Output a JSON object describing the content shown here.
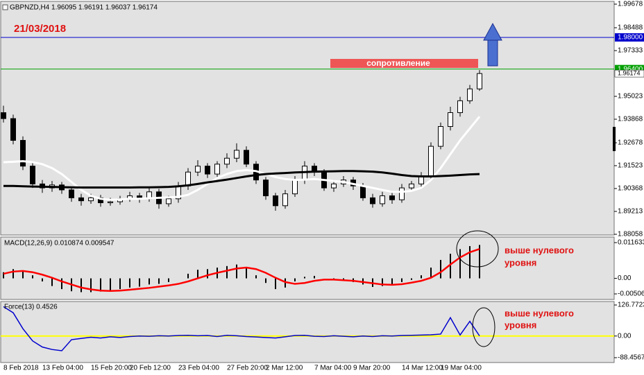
{
  "chart_data": [
    {
      "type": "candlestick",
      "title": "GBPNZD,H4  1.96095 1.96191 1.96037 1.96174",
      "categories": [
        "8 Feb 2018",
        null,
        null,
        null,
        "13 Feb 04:00",
        null,
        null,
        null,
        null,
        "15 Feb 20:00",
        null,
        null,
        null,
        "20 Feb 12:00",
        null,
        null,
        null,
        null,
        "23 Feb 04:00",
        null,
        null,
        null,
        null,
        "27 Feb 20:00",
        null,
        null,
        null,
        "2 Mar 12:00",
        null,
        null,
        null,
        null,
        "7 Mar 04:00",
        null,
        null,
        null,
        "9 Mar 20:00",
        null,
        null,
        null,
        null,
        "14 Mar 12:00",
        null,
        null,
        null,
        "19 Mar 04:00",
        null,
        null,
        null,
        null
      ],
      "open": [
        1.942,
        1.939,
        1.928,
        1.915,
        1.906,
        1.904,
        1.9055,
        1.903,
        1.899,
        1.8975,
        1.899,
        1.8965,
        1.897,
        1.8985,
        1.9,
        1.8985,
        1.902,
        1.896,
        1.8985,
        1.905,
        1.912,
        1.915,
        1.911,
        1.916,
        1.919,
        1.923,
        1.916,
        1.908,
        1.9,
        1.895,
        1.901,
        1.908,
        1.915,
        1.912,
        1.904,
        1.906,
        1.908,
        1.905,
        1.899,
        1.896,
        1.9,
        1.898,
        1.904,
        1.906,
        1.91,
        1.925,
        1.935,
        1.942,
        1.948,
        1.954
      ],
      "high": [
        1.9455,
        1.941,
        1.93,
        1.917,
        1.908,
        1.9075,
        1.907,
        1.9045,
        1.901,
        1.901,
        1.9005,
        1.899,
        1.9,
        1.902,
        1.9015,
        1.904,
        1.9035,
        1.9,
        1.907,
        1.914,
        1.918,
        1.9165,
        1.9175,
        1.9215,
        1.9265,
        1.925,
        1.9175,
        1.9095,
        1.9015,
        1.903,
        1.91,
        1.9175,
        1.9165,
        1.9135,
        1.908,
        1.91,
        1.9095,
        1.9065,
        1.901,
        1.902,
        1.9015,
        1.906,
        1.9075,
        1.912,
        1.927,
        1.937,
        1.945,
        1.95,
        1.956,
        1.9635
      ],
      "low": [
        1.937,
        1.926,
        1.913,
        1.904,
        1.9015,
        1.902,
        1.901,
        1.897,
        1.895,
        1.896,
        1.8945,
        1.895,
        1.8955,
        1.897,
        1.8965,
        1.897,
        1.8935,
        1.8945,
        1.8965,
        1.903,
        1.91,
        1.909,
        1.9095,
        1.914,
        1.917,
        1.9145,
        1.906,
        1.898,
        1.8925,
        1.8935,
        1.8995,
        1.906,
        1.91,
        1.9025,
        1.902,
        1.9045,
        1.903,
        1.8975,
        1.894,
        1.8945,
        1.896,
        1.8965,
        1.903,
        1.9045,
        1.9085,
        1.9235,
        1.933,
        1.94,
        1.9465,
        1.953
      ],
      "close": [
        1.939,
        1.928,
        1.915,
        1.906,
        1.904,
        1.9055,
        1.903,
        1.899,
        1.8975,
        1.899,
        1.8965,
        1.897,
        1.8985,
        1.9,
        1.8985,
        1.902,
        1.896,
        1.8985,
        1.905,
        1.912,
        1.915,
        1.911,
        1.916,
        1.919,
        1.923,
        1.916,
        1.908,
        1.9,
        1.895,
        1.901,
        1.908,
        1.915,
        1.912,
        1.904,
        1.906,
        1.908,
        1.905,
        1.899,
        1.896,
        1.9,
        1.898,
        1.904,
        1.906,
        1.91,
        1.925,
        1.935,
        1.942,
        1.948,
        1.954,
        1.96174
      ],
      "up_color": "#ffffff",
      "down_color": "#000000",
      "series": [
        {
          "color": "#ffffff",
          "values": [
            1.917,
            1.9172,
            1.9175,
            1.917,
            1.916,
            1.914,
            1.911,
            1.907,
            1.903,
            1.9,
            1.8985,
            1.898,
            1.8982,
            1.8985,
            1.8985,
            1.8988,
            1.899,
            1.8992,
            1.8995,
            1.9005,
            1.903,
            1.906,
            1.909,
            1.911,
            1.9125,
            1.913,
            1.9125,
            1.911,
            1.9095,
            1.9085,
            1.908,
            1.9082,
            1.9085,
            1.908,
            1.9075,
            1.907,
            1.906,
            1.905,
            1.904,
            1.903,
            1.902,
            1.902,
            1.9025,
            1.904,
            1.908,
            1.914,
            1.921,
            1.928,
            1.934,
            1.94
          ]
        },
        {
          "color": "#000000",
          "values": [
            1.905,
            1.905,
            1.9048,
            1.9047,
            1.9046,
            1.9045,
            1.9044,
            1.9043,
            1.9042,
            1.9042,
            1.9042,
            1.9042,
            1.9042,
            1.9042,
            1.9043,
            1.9043,
            1.9044,
            1.9045,
            1.9048,
            1.9053,
            1.906,
            1.9068,
            1.9075,
            1.9082,
            1.909,
            1.9098,
            1.9105,
            1.911,
            1.9113,
            1.9115,
            1.9118,
            1.912,
            1.9122,
            1.9123,
            1.9124,
            1.9125,
            1.9125,
            1.9124,
            1.9122,
            1.9118,
            1.9112,
            1.9105,
            1.91,
            1.9098,
            1.9098,
            1.91,
            1.9102,
            1.9105,
            1.9108,
            1.911
          ]
        }
      ],
      "ylim": [
        1.88058,
        1.99678
      ],
      "yticks": [
        1.99678,
        1.98488,
        1.97333,
        1.95023,
        1.93868,
        1.92678,
        1.91523,
        1.90368,
        1.89213,
        1.88058
      ],
      "levels": [
        {
          "value": 1.98,
          "label": "1.98000",
          "color": "#0000cd"
        },
        {
          "value": 1.964,
          "label": "1.96400",
          "color": "#00a000"
        }
      ],
      "current": {
        "value": 1.96174,
        "label": "1.96174"
      },
      "date_label": "21/03/2018",
      "resistance_label": "сопротивление"
    },
    {
      "type": "macd",
      "title": "MACD(12,26,9) 0.010874 0.009547",
      "histogram": [
        0.002,
        0.003,
        0.0025,
        0.001,
        -0.001,
        -0.0025,
        -0.0035,
        -0.0042,
        -0.0045,
        -0.0045,
        -0.0043,
        -0.004,
        -0.0035,
        -0.003,
        -0.0027,
        -0.002,
        -0.0018,
        -0.0012,
        0.0,
        0.0015,
        0.0028,
        0.003,
        0.0035,
        0.004,
        0.0045,
        0.0035,
        0.001,
        -0.0015,
        -0.0035,
        -0.003,
        -0.001,
        0.0005,
        0.0008,
        0.0,
        -0.0005,
        -0.0008,
        -0.0012,
        -0.002,
        -0.0028,
        -0.0025,
        -0.0022,
        -0.0012,
        -0.0005,
        0.001,
        0.0035,
        0.006,
        0.008,
        0.0095,
        0.0105,
        0.010874
      ],
      "signal": [
        0.0015,
        0.0022,
        0.0024,
        0.002,
        0.0012,
        0.0002,
        -0.001,
        -0.002,
        -0.003,
        -0.0036,
        -0.004,
        -0.0041,
        -0.004,
        -0.0037,
        -0.0034,
        -0.0031,
        -0.0027,
        -0.0023,
        -0.0018,
        -0.001,
        0.0,
        0.001,
        0.0018,
        0.0025,
        0.0032,
        0.0035,
        0.003,
        0.0018,
        0.0002,
        -0.0012,
        -0.0018,
        -0.0015,
        -0.0008,
        -0.0004,
        -0.0004,
        -0.0006,
        -0.0008,
        -0.0012,
        -0.0016,
        -0.002,
        -0.0021,
        -0.0019,
        -0.0014,
        -0.0008,
        0.0002,
        0.002,
        0.0045,
        0.0068,
        0.0085,
        0.009547
      ],
      "histogram_color": "#000000",
      "signal_color": "#ff0000",
      "ylim": [
        -0.005061,
        0.011633
      ],
      "yticks": [
        0.011633,
        {
          "value": 0,
          "label": "0.00"
        },
        -0.005061
      ],
      "annotation": [
        "выше нулевого",
        "уровня"
      ]
    },
    {
      "type": "force",
      "title": "Force(13) 0.4526",
      "values": [
        120,
        95,
        30,
        -20,
        -45,
        -55,
        -60,
        -15,
        -10,
        -5,
        -8,
        -3,
        -6,
        -2,
        0,
        -1,
        1,
        0,
        2,
        3,
        1,
        2,
        -2,
        3,
        1,
        -2,
        -4,
        -6,
        -8,
        -3,
        2,
        3,
        -1,
        -2,
        1,
        -1,
        -3,
        0,
        -2,
        1,
        0,
        2,
        3,
        4,
        5,
        8,
        75,
        4,
        60,
        0.4526
      ],
      "color": "#0000cd",
      "zero_color": "#ffff00",
      "ylim": [
        -88.4567,
        126.7723
      ],
      "yticks": [
        126.7723,
        {
          "value": 0,
          "label": "0.00"
        },
        -88.4567
      ],
      "annotation": [
        "выше нулевого",
        "уровня"
      ]
    }
  ]
}
